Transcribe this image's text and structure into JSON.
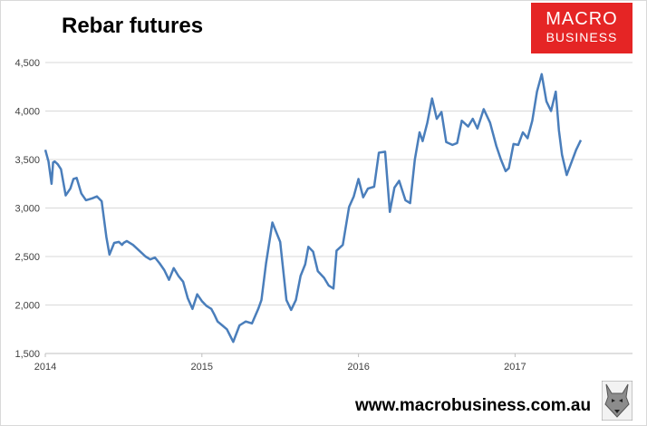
{
  "header": {
    "title": "Rebar futures"
  },
  "logo": {
    "line1": "MACRO",
    "line2": "BUSINESS",
    "color": "#e52525"
  },
  "footer": {
    "website": "www.macrobusiness.com.au",
    "mascot_icon": "fox-icon"
  },
  "chart_data": {
    "type": "line",
    "title": "Rebar futures",
    "xlabel": "",
    "ylabel": "",
    "x_ticks": [
      "2014",
      "2015",
      "2016",
      "2017"
    ],
    "y_ticks": [
      "1,500",
      "2,000",
      "2,500",
      "3,000",
      "3,500",
      "4,000",
      "4,500"
    ],
    "xlim": [
      2014.0,
      2017.75
    ],
    "ylim": [
      1500,
      4500
    ],
    "grid": "horizontal",
    "legend": "none",
    "line_color": "#4a7ebb",
    "series": [
      {
        "x": [
          2014.0,
          2014.02,
          2014.04,
          2014.05,
          2014.06,
          2014.08,
          2014.1,
          2014.13,
          2014.16,
          2014.18,
          2014.2,
          2014.23,
          2014.26,
          2014.3,
          2014.33,
          2014.36,
          2014.39,
          2014.41,
          2014.44,
          2014.47,
          2014.49,
          2014.5,
          2014.52,
          2014.56,
          2014.6,
          2014.64,
          2014.67,
          2014.7,
          2014.73,
          2014.76,
          2014.79,
          2014.82,
          2014.85,
          2014.88,
          2014.91,
          2014.94,
          2014.97,
          2015.0,
          2015.03,
          2015.06,
          2015.08,
          2015.1,
          2015.13,
          2015.16,
          2015.2,
          2015.24,
          2015.28,
          2015.32,
          2015.36,
          2015.38,
          2015.41,
          2015.45,
          2015.5,
          2015.54,
          2015.57,
          2015.6,
          2015.63,
          2015.66,
          2015.68,
          2015.71,
          2015.74,
          2015.78,
          2015.81,
          2015.84,
          2015.86,
          2015.9,
          2015.94,
          2015.97,
          2016.0,
          2016.03,
          2016.06,
          2016.1,
          2016.13,
          2016.17,
          2016.2,
          2016.23,
          2016.26,
          2016.3,
          2016.33,
          2016.36,
          2016.39,
          2016.41,
          2016.44,
          2016.47,
          2016.5,
          2016.53,
          2016.56,
          2016.6,
          2016.63,
          2016.66,
          2016.7,
          2016.73,
          2016.76,
          2016.8,
          2016.84,
          2016.88,
          2016.91,
          2016.94,
          2016.96,
          2016.99,
          2017.02,
          2017.05,
          2017.08,
          2017.11,
          2017.14,
          2017.17,
          2017.2,
          2017.23,
          2017.26,
          2017.28,
          2017.3,
          2017.33,
          2017.36,
          2017.39,
          2017.42
        ],
        "y": [
          3600,
          3480,
          3250,
          3470,
          3480,
          3450,
          3400,
          3130,
          3200,
          3300,
          3310,
          3150,
          3080,
          3100,
          3120,
          3070,
          2700,
          2520,
          2640,
          2650,
          2620,
          2640,
          2660,
          2620,
          2560,
          2500,
          2470,
          2490,
          2430,
          2360,
          2260,
          2380,
          2300,
          2240,
          2070,
          1960,
          2110,
          2040,
          1990,
          1960,
          1900,
          1830,
          1790,
          1750,
          1620,
          1790,
          1830,
          1810,
          1960,
          2050,
          2430,
          2850,
          2650,
          2050,
          1950,
          2050,
          2300,
          2420,
          2600,
          2550,
          2350,
          2280,
          2200,
          2170,
          2560,
          2620,
          3010,
          3120,
          3300,
          3110,
          3200,
          3220,
          3570,
          3580,
          2960,
          3210,
          3280,
          3080,
          3050,
          3500,
          3780,
          3690,
          3880,
          4130,
          3920,
          3990,
          3680,
          3650,
          3670,
          3900,
          3840,
          3920,
          3820,
          4020,
          3880,
          3640,
          3500,
          3380,
          3410,
          3660,
          3650,
          3780,
          3720,
          3900,
          4200,
          4380,
          4100,
          4000,
          4200,
          3800,
          3550,
          3340,
          3470,
          3600,
          3700
        ]
      }
    ]
  }
}
